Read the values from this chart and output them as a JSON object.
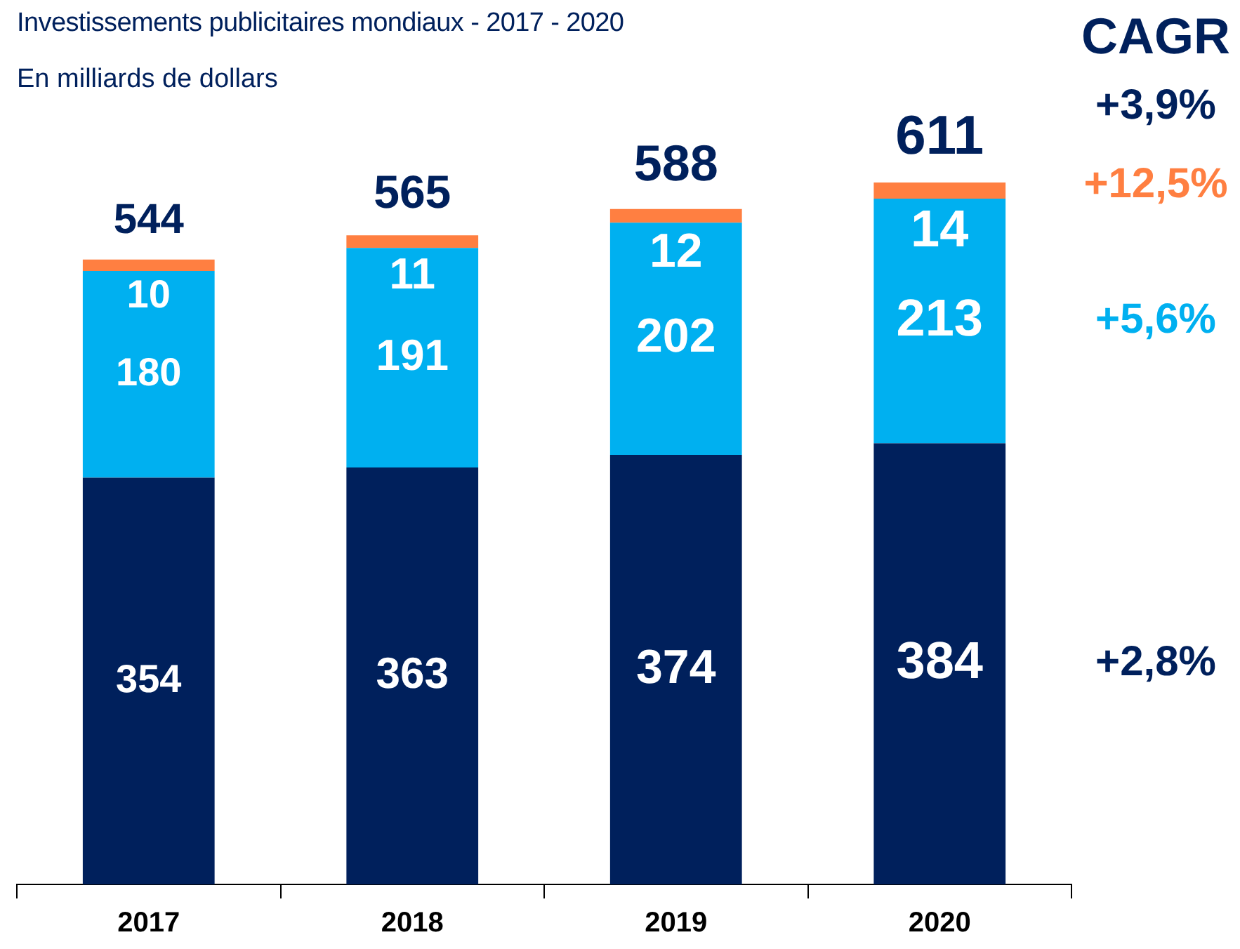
{
  "chart_data": {
    "type": "bar",
    "title": "Investissements publicitaires mondiaux - 2017 - 2020",
    "subtitle": "En milliards de dollars",
    "categories": [
      "2017",
      "2018",
      "2019",
      "2020"
    ],
    "stacked": true,
    "series": [
      {
        "color": "#00205c",
        "values": [
          354,
          363,
          374,
          384
        ]
      },
      {
        "color": "#00b0f0",
        "values": [
          180,
          191,
          202,
          213
        ]
      },
      {
        "color": "#ff7f41",
        "values": [
          10,
          11,
          12,
          14
        ]
      }
    ],
    "data_labels": true,
    "totals": [
      "544",
      "565",
      "588",
      "611"
    ],
    "annotations": [
      "CAGR",
      "+3,9%",
      "+12,5%",
      "+5,6%",
      "+2,8%"
    ],
    "legend": false,
    "grid": false,
    "tick_labels": "x"
  }
}
